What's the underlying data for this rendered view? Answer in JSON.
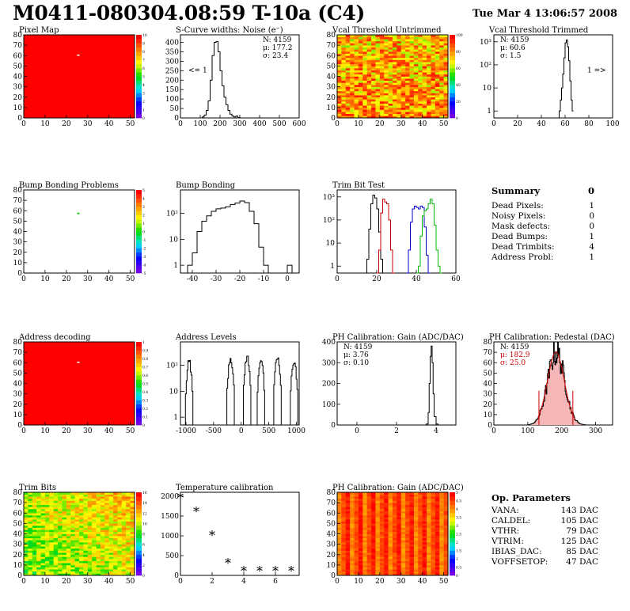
{
  "header": {
    "title": "M0411-080304.08:59 T-10a (C4)",
    "date": "Tue Mar  4 13:06:57 2008"
  },
  "chart_data": [
    {
      "id": "pixel-map",
      "type": "heatmap",
      "title": "Pixel Map",
      "xlim": [
        0,
        52
      ],
      "ylim": [
        0,
        80
      ],
      "xticks": [
        0,
        10,
        20,
        30,
        40,
        50
      ],
      "yticks": [
        0,
        10,
        20,
        30,
        40,
        50,
        60,
        70,
        80
      ],
      "zticks": [
        0,
        1,
        2,
        3,
        4,
        5,
        6,
        7,
        8,
        9,
        10
      ],
      "fill": "uniform-red",
      "special_cells": [
        [
          25,
          60
        ]
      ]
    },
    {
      "id": "scurve",
      "type": "line",
      "title": "S-Curve widths: Noise (e⁻)",
      "xlim": [
        0,
        600
      ],
      "ylim": [
        0,
        440
      ],
      "xticks": [
        0,
        100,
        200,
        300,
        400,
        500,
        600
      ],
      "yticks": [
        0,
        50,
        100,
        150,
        200,
        250,
        300,
        350,
        400
      ],
      "stats": [
        "N: 4159",
        "μ: 177.2",
        "σ: 23.4"
      ],
      "annotation": "<= 1",
      "x": [
        100,
        110,
        120,
        130,
        140,
        150,
        160,
        170,
        180,
        190,
        200,
        210,
        220,
        230,
        240,
        250,
        260,
        270,
        280,
        290,
        300
      ],
      "y": [
        0,
        5,
        15,
        40,
        90,
        200,
        330,
        400,
        405,
        350,
        250,
        170,
        110,
        70,
        40,
        20,
        10,
        5,
        10,
        2,
        0
      ]
    },
    {
      "id": "vcal-untrimmed",
      "type": "heatmap",
      "title": "Vcal Threshold Untrimmed",
      "xlim": [
        0,
        52
      ],
      "ylim": [
        0,
        80
      ],
      "xticks": [
        0,
        10,
        20,
        30,
        40,
        50
      ],
      "yticks": [
        0,
        10,
        20,
        30,
        40,
        50,
        60,
        70,
        80
      ],
      "zticks": [
        0,
        20,
        40,
        60,
        80,
        100
      ],
      "fill": "noisy-warm"
    },
    {
      "id": "vcal-trimmed",
      "type": "line",
      "title": "Vcal Threshold Trimmed",
      "scale": "log",
      "xlim": [
        0,
        100
      ],
      "ylim": [
        0.5,
        2000
      ],
      "xticks": [
        0,
        20,
        40,
        60,
        80,
        100
      ],
      "ylabels": [
        "1",
        "10",
        "10²",
        "10³"
      ],
      "stats": [
        "N: 4159",
        "μ: 60.6",
        "σ:  1.5"
      ],
      "annotation": "1 =>",
      "x": [
        55,
        56,
        57,
        58,
        59,
        60,
        61,
        62,
        63,
        64,
        65,
        66
      ],
      "y": [
        1,
        3,
        10,
        40,
        200,
        900,
        1200,
        600,
        150,
        20,
        3,
        1
      ]
    },
    {
      "id": "bump-problems",
      "type": "heatmap",
      "title": "Bump Bonding Problems",
      "xlim": [
        0,
        52
      ],
      "ylim": [
        0,
        80
      ],
      "xticks": [
        0,
        10,
        20,
        30,
        40,
        50
      ],
      "yticks": [
        0,
        10,
        20,
        30,
        40,
        50,
        60,
        70,
        80
      ],
      "zticks": [
        -5,
        -4,
        -3,
        -2,
        -1,
        0,
        1,
        2,
        3,
        4,
        5
      ],
      "fill": "white",
      "special_cells": [
        [
          25,
          57
        ]
      ]
    },
    {
      "id": "bump-bonding",
      "type": "line",
      "title": "Bump Bonding",
      "scale": "log",
      "xlim": [
        -45,
        5
      ],
      "ylim": [
        0.5,
        800
      ],
      "xticks": [
        -40,
        -30,
        -20,
        -10,
        0
      ],
      "ylabels": [
        "1",
        "10",
        "10²"
      ],
      "x": [
        -44,
        -42,
        -40,
        -38,
        -36,
        -34,
        -32,
        -30,
        -28,
        -26,
        -24,
        -22,
        -20,
        -18,
        -16,
        -14,
        -12,
        -10,
        -8,
        -6,
        -4,
        -2,
        0,
        2
      ],
      "y": [
        0.5,
        1,
        3,
        20,
        50,
        80,
        120,
        150,
        160,
        180,
        220,
        250,
        300,
        260,
        120,
        40,
        5,
        1,
        0.5,
        0.5,
        0.5,
        0.5,
        1,
        0.5
      ]
    },
    {
      "id": "trim-bit-test",
      "type": "line",
      "title": "Trim Bit Test",
      "scale": "log",
      "xlim": [
        0,
        60
      ],
      "ylim": [
        0.5,
        2000
      ],
      "xticks": [
        0,
        20,
        40,
        60
      ],
      "ylabels": [
        "1",
        "10",
        "10²",
        "10³"
      ],
      "series": [
        {
          "color": "#000000",
          "x": [
            14,
            15,
            16,
            17,
            18,
            19,
            20,
            21,
            22,
            23
          ],
          "y": [
            0.5,
            2,
            40,
            500,
            1200,
            900,
            300,
            30,
            2,
            0.5
          ]
        },
        {
          "color": "#cc0000",
          "x": [
            20,
            21,
            22,
            23,
            24,
            25,
            26,
            27,
            28
          ],
          "y": [
            0.5,
            5,
            200,
            800,
            600,
            500,
            100,
            5,
            0.5
          ]
        },
        {
          "color": "#0000cc",
          "x": [
            35,
            36,
            37,
            38,
            39,
            40,
            41,
            42,
            43,
            44,
            45,
            46
          ],
          "y": [
            0.5,
            5,
            80,
            300,
            400,
            350,
            300,
            400,
            350,
            50,
            3,
            0.5
          ]
        },
        {
          "color": "#00bb00",
          "x": [
            40,
            41,
            42,
            43,
            44,
            45,
            46,
            47,
            48,
            49,
            50,
            51,
            52
          ],
          "y": [
            0.5,
            1,
            20,
            150,
            250,
            300,
            500,
            800,
            500,
            60,
            5,
            1,
            0.5
          ]
        }
      ]
    },
    {
      "id": "address-decoding",
      "type": "heatmap",
      "title": "Address decoding",
      "xlim": [
        0,
        52
      ],
      "ylim": [
        0,
        80
      ],
      "xticks": [
        0,
        10,
        20,
        30,
        40,
        50
      ],
      "yticks": [
        0,
        10,
        20,
        30,
        40,
        50,
        60,
        70,
        80
      ],
      "zticks": [
        0,
        0.1,
        0.2,
        0.3,
        0.4,
        0.5,
        0.6,
        0.7,
        0.8,
        0.9,
        1
      ],
      "fill": "uniform-red",
      "special_cells": [
        [
          25,
          60
        ]
      ]
    },
    {
      "id": "address-levels",
      "type": "line",
      "title": "Address Levels",
      "scale": "log",
      "xlim": [
        -1100,
        1050
      ],
      "ylim": [
        0.5,
        800
      ],
      "xticks": [
        -1000,
        -500,
        0,
        500,
        1000
      ],
      "ylabels": [
        "1",
        "10",
        "10²"
      ],
      "peaks": [
        -950,
        -200,
        100,
        350,
        650,
        950
      ],
      "peak_heights": [
        150,
        200,
        220,
        180,
        200,
        150
      ]
    },
    {
      "id": "ph-gain",
      "type": "line",
      "title": "PH Calibration: Gain (ADC/DAC)",
      "xlim": [
        -1,
        5
      ],
      "ylim": [
        0,
        400
      ],
      "xticks": [
        0,
        2,
        4
      ],
      "yticks": [
        0,
        100,
        200,
        300,
        400
      ],
      "stats": [
        "N: 4159",
        "μ: 3.76",
        "σ: 0.10"
      ],
      "x": [
        3.4,
        3.5,
        3.6,
        3.65,
        3.7,
        3.75,
        3.8,
        3.85,
        3.9,
        4.0,
        4.1
      ],
      "y": [
        0,
        5,
        60,
        200,
        330,
        380,
        300,
        150,
        40,
        5,
        0
      ]
    },
    {
      "id": "ph-pedestal",
      "type": "line",
      "title": "PH Calibration: Pedestal (DAC)",
      "xlim": [
        0,
        350
      ],
      "ylim": [
        0,
        80
      ],
      "xticks": [
        0,
        100,
        200,
        300
      ],
      "yticks": [
        0,
        10,
        20,
        30,
        40,
        50,
        60,
        70,
        80
      ],
      "stats": [
        "N: 4159",
        "μ: 182.9",
        "σ: 25.0"
      ],
      "fit_color": "#cc0000",
      "fit_mean": 182.9,
      "fit_sigma": 25.0,
      "fit_amp": 70
    },
    {
      "id": "trim-bits",
      "type": "heatmap",
      "title": "Trim Bits",
      "xlim": [
        0,
        52
      ],
      "ylim": [
        0,
        80
      ],
      "xticks": [
        0,
        10,
        20,
        30,
        40,
        50
      ],
      "yticks": [
        0,
        10,
        20,
        30,
        40,
        50,
        60,
        70,
        80
      ],
      "zticks": [
        0,
        2,
        4,
        6,
        8,
        10,
        12,
        14,
        16
      ],
      "fill": "noisy-green"
    },
    {
      "id": "temperature-calibration",
      "type": "scatter",
      "title": "Temperature calibration",
      "xlim": [
        0,
        7.5
      ],
      "ylim": [
        0,
        2100
      ],
      "xticks": [
        0,
        2,
        4,
        6
      ],
      "yticks": [
        0,
        500,
        1000,
        1500,
        2000
      ],
      "x": [
        0,
        1,
        2,
        3,
        4,
        5,
        6,
        7
      ],
      "y": [
        1950,
        1600,
        1000,
        300,
        100,
        100,
        100,
        100
      ]
    },
    {
      "id": "ph-gain-map",
      "type": "heatmap",
      "title": "PH Calibration: Gain (ADC/DAC)",
      "xlim": [
        0,
        52
      ],
      "ylim": [
        0,
        80
      ],
      "xticks": [
        0,
        10,
        20,
        30,
        40,
        50
      ],
      "yticks": [
        0,
        10,
        20,
        30,
        40,
        50,
        60,
        70,
        80
      ],
      "zticks": [
        0,
        0.5,
        1,
        1.5,
        2,
        2.5,
        3,
        3.5,
        4,
        4.5,
        5
      ],
      "fill": "column-stripes"
    }
  ],
  "summary": {
    "title": "Summary",
    "total": "0",
    "rows": [
      {
        "label": "Dead Pixels:",
        "value": "1"
      },
      {
        "label": "Noisy Pixels:",
        "value": "0"
      },
      {
        "label": "Mask defects:",
        "value": "0"
      },
      {
        "label": "Dead Bumps:",
        "value": "1"
      },
      {
        "label": "Dead Trimbits:",
        "value": "4"
      },
      {
        "label": "Address Probl:",
        "value": "1"
      }
    ]
  },
  "op_parameters": {
    "title": "Op. Parameters",
    "rows": [
      {
        "label": "VANA:",
        "value": "143 DAC"
      },
      {
        "label": "CALDEL:",
        "value": "105 DAC"
      },
      {
        "label": "VTHR:",
        "value": "79 DAC"
      },
      {
        "label": "VTRIM:",
        "value": "125 DAC"
      },
      {
        "label": "IBIAS_DAC:",
        "value": "85 DAC"
      },
      {
        "label": "VOFFSETOP:",
        "value": "47 DAC"
      }
    ]
  }
}
